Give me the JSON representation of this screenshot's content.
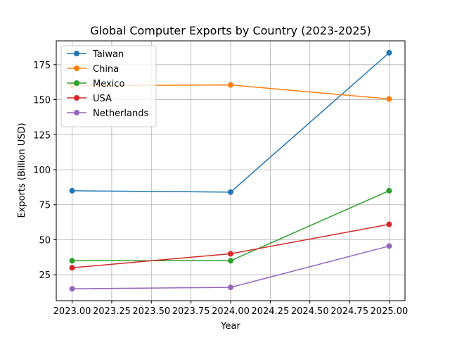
{
  "chart_data": {
    "type": "line",
    "title": "Global Computer Exports by Country (2023-2025)",
    "xlabel": "Year",
    "ylabel": "Exports (Billion USD)",
    "x": [
      2023,
      2024,
      2025
    ],
    "xlim": [
      2022.9,
      2025.1
    ],
    "ylim": [
      6.5,
      192
    ],
    "x_ticks": [
      2023.0,
      2023.25,
      2023.5,
      2023.75,
      2024.0,
      2024.25,
      2024.5,
      2024.75,
      2025.0
    ],
    "x_tick_labels": [
      "2023.00",
      "2023.25",
      "2023.50",
      "2023.75",
      "2024.00",
      "2024.25",
      "2024.50",
      "2024.75",
      "2025.00"
    ],
    "y_ticks": [
      25,
      50,
      75,
      100,
      125,
      150,
      175
    ],
    "y_tick_labels": [
      "25",
      "50",
      "75",
      "100",
      "125",
      "150",
      "175"
    ],
    "grid": true,
    "legend_position": "upper-left",
    "series": [
      {
        "name": "Taiwan",
        "color": "#1f77b4",
        "values": [
          85.0,
          84.0,
          183.5
        ]
      },
      {
        "name": "China",
        "color": "#ff7f0e",
        "values": [
          160.0,
          160.5,
          150.5
        ]
      },
      {
        "name": "Mexico",
        "color": "#2ca02c",
        "values": [
          35.0,
          35.0,
          85.0
        ]
      },
      {
        "name": "USA",
        "color": "#d62728",
        "values": [
          30.0,
          40.0,
          61.0
        ]
      },
      {
        "name": "Netherlands",
        "color": "#9467bd",
        "values": [
          15.0,
          16.0,
          45.5
        ]
      }
    ]
  }
}
